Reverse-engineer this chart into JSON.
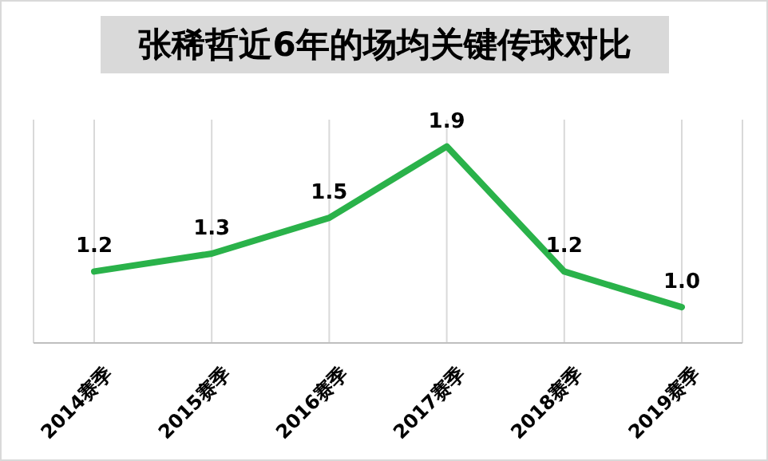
{
  "chart_data": {
    "type": "line",
    "title": "张稀哲近6年的场均关键传球对比",
    "categories": [
      "2014赛季",
      "2015赛季",
      "2016赛季",
      "2017赛季",
      "2018赛季",
      "2019赛季"
    ],
    "series": [
      {
        "color": "#2ab24a",
        "values": [
          1.2,
          1.3,
          1.5,
          1.9,
          1.2,
          1.0
        ],
        "value_labels": [
          "1.2",
          "1.3",
          "1.5",
          "1.9",
          "1.2",
          "1.0"
        ]
      }
    ],
    "grid": "x",
    "marker": "none",
    "line_style": "solid"
  }
}
